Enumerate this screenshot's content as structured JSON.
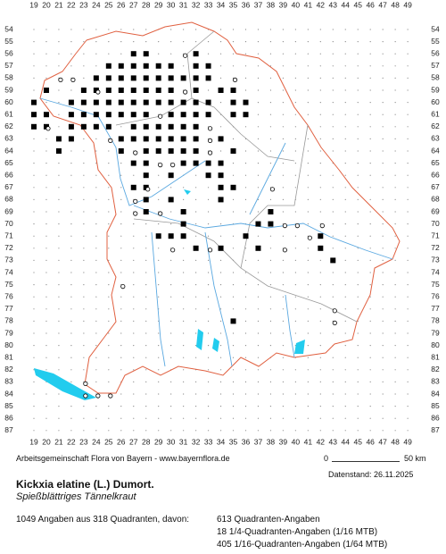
{
  "map": {
    "columns": [
      19,
      20,
      21,
      22,
      23,
      24,
      25,
      26,
      27,
      28,
      29,
      30,
      31,
      32,
      33,
      34,
      35,
      36,
      37,
      38,
      39,
      40,
      41,
      42,
      43,
      44,
      45,
      46,
      47,
      48,
      49
    ],
    "rows": [
      54,
      55,
      56,
      57,
      58,
      59,
      60,
      61,
      62,
      63,
      64,
      65,
      66,
      67,
      68,
      69,
      70,
      71,
      72,
      73,
      74,
      75,
      76,
      77,
      78,
      79,
      80,
      81,
      82,
      83,
      84,
      85,
      86,
      87
    ],
    "quadrant_points": [
      [
        27,
        56
      ],
      [
        28,
        56
      ],
      [
        32,
        56
      ],
      [
        25,
        57
      ],
      [
        26,
        57
      ],
      [
        27,
        57
      ],
      [
        28,
        57
      ],
      [
        29,
        57
      ],
      [
        30,
        57
      ],
      [
        32,
        57
      ],
      [
        33,
        57
      ],
      [
        24,
        58
      ],
      [
        25,
        58
      ],
      [
        26,
        58
      ],
      [
        27,
        58
      ],
      [
        28,
        58
      ],
      [
        29,
        58
      ],
      [
        30,
        58
      ],
      [
        31,
        58
      ],
      [
        32,
        58
      ],
      [
        33,
        58
      ],
      [
        20,
        59
      ],
      [
        23,
        59
      ],
      [
        24,
        59
      ],
      [
        25,
        59
      ],
      [
        26,
        59
      ],
      [
        27,
        59
      ],
      [
        28,
        59
      ],
      [
        29,
        59
      ],
      [
        30,
        59
      ],
      [
        32,
        59
      ],
      [
        34,
        59
      ],
      [
        35,
        59
      ],
      [
        19,
        60
      ],
      [
        22,
        60
      ],
      [
        23,
        60
      ],
      [
        24,
        60
      ],
      [
        25,
        60
      ],
      [
        26,
        60
      ],
      [
        27,
        60
      ],
      [
        28,
        60
      ],
      [
        29,
        60
      ],
      [
        30,
        60
      ],
      [
        31,
        60
      ],
      [
        32,
        60
      ],
      [
        33,
        60
      ],
      [
        35,
        60
      ],
      [
        36,
        60
      ],
      [
        19,
        61
      ],
      [
        20,
        61
      ],
      [
        22,
        61
      ],
      [
        23,
        61
      ],
      [
        24,
        61
      ],
      [
        25,
        61
      ],
      [
        26,
        61
      ],
      [
        27,
        61
      ],
      [
        28,
        61
      ],
      [
        30,
        61
      ],
      [
        31,
        61
      ],
      [
        32,
        61
      ],
      [
        33,
        61
      ],
      [
        35,
        61
      ],
      [
        36,
        61
      ],
      [
        19,
        62
      ],
      [
        20,
        62
      ],
      [
        22,
        62
      ],
      [
        23,
        62
      ],
      [
        24,
        62
      ],
      [
        25,
        62
      ],
      [
        27,
        62
      ],
      [
        28,
        62
      ],
      [
        29,
        62
      ],
      [
        30,
        62
      ],
      [
        31,
        62
      ],
      [
        32,
        62
      ],
      [
        21,
        63
      ],
      [
        22,
        63
      ],
      [
        26,
        63
      ],
      [
        27,
        63
      ],
      [
        28,
        63
      ],
      [
        29,
        63
      ],
      [
        30,
        63
      ],
      [
        31,
        63
      ],
      [
        32,
        63
      ],
      [
        34,
        63
      ],
      [
        21,
        64
      ],
      [
        26,
        64
      ],
      [
        28,
        64
      ],
      [
        29,
        64
      ],
      [
        30,
        64
      ],
      [
        31,
        64
      ],
      [
        32,
        64
      ],
      [
        35,
        64
      ],
      [
        27,
        65
      ],
      [
        28,
        65
      ],
      [
        31,
        65
      ],
      [
        32,
        65
      ],
      [
        33,
        65
      ],
      [
        34,
        65
      ],
      [
        28,
        66
      ],
      [
        30,
        66
      ],
      [
        33,
        66
      ],
      [
        34,
        66
      ],
      [
        27,
        67
      ],
      [
        28,
        67
      ],
      [
        34,
        67
      ],
      [
        35,
        67
      ],
      [
        28,
        68
      ],
      [
        30,
        68
      ],
      [
        34,
        68
      ],
      [
        28,
        69
      ],
      [
        31,
        69
      ],
      [
        38,
        69
      ],
      [
        31,
        70
      ],
      [
        37,
        70
      ],
      [
        38,
        70
      ],
      [
        29,
        71
      ],
      [
        30,
        71
      ],
      [
        31,
        71
      ],
      [
        36,
        71
      ],
      [
        42,
        71
      ],
      [
        32,
        72
      ],
      [
        34,
        72
      ],
      [
        37,
        72
      ],
      [
        42,
        72
      ],
      [
        43,
        73
      ],
      [
        35,
        78
      ]
    ],
    "sixteenth_points": [
      [
        31,
        56
      ],
      [
        21,
        58
      ],
      [
        22,
        58
      ],
      [
        35,
        58
      ],
      [
        24,
        59
      ],
      [
        31,
        59
      ],
      [
        29,
        61
      ],
      [
        33,
        62
      ],
      [
        20,
        62
      ],
      [
        25,
        63
      ],
      [
        33,
        64
      ],
      [
        27,
        64
      ],
      [
        29,
        65
      ],
      [
        30,
        65
      ],
      [
        28,
        67
      ],
      [
        27,
        68
      ],
      [
        27,
        69
      ],
      [
        29,
        69
      ],
      [
        33,
        63
      ],
      [
        38,
        67
      ],
      [
        39,
        70
      ],
      [
        40,
        70
      ],
      [
        41,
        71
      ],
      [
        39,
        72
      ],
      [
        42,
        70
      ],
      [
        30,
        72
      ],
      [
        33,
        72
      ],
      [
        26,
        75
      ],
      [
        43,
        77
      ],
      [
        43,
        78
      ],
      [
        23,
        83
      ],
      [
        23,
        84
      ],
      [
        24,
        84
      ],
      [
        25,
        84
      ]
    ]
  },
  "footer": {
    "credit": "Arbeitsgemeinschaft Flora von Bayern - www.bayernflora.de",
    "scale_start": "0",
    "scale_end": "50 km",
    "date": "Datenstand: 26.11.2025"
  },
  "species": {
    "name": "Kickxia elatine (L.) Dumort.",
    "common_name": "Spießblättriges Tännelkraut"
  },
  "summary": {
    "total": "1049 Angaben aus 318 Quadranten, davon:",
    "lines": [
      "613 Quadranten-Angaben",
      "18 1/4-Quadranten-Angaben (1/16 MTB)",
      "405 1/16-Quadranten-Angaben (1/64 MTB)"
    ]
  }
}
